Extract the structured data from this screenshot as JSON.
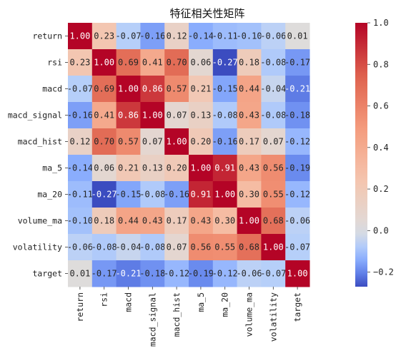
{
  "chart_data": {
    "type": "heatmap",
    "title": "特征相关性矩阵",
    "xlabel": "",
    "ylabel": "",
    "rows": [
      "return",
      "rsi",
      "macd",
      "macd_signal",
      "macd_hist",
      "ma_5",
      "ma_20",
      "volume_ma",
      "volatility",
      "target"
    ],
    "columns": [
      "return",
      "rsi",
      "macd",
      "macd_signal",
      "macd_hist",
      "ma_5",
      "ma_20",
      "volume_ma",
      "volatility",
      "target"
    ],
    "values": [
      [
        1.0,
        0.23,
        -0.07,
        -0.16,
        0.12,
        -0.14,
        -0.11,
        -0.1,
        -0.06,
        0.01
      ],
      [
        0.23,
        1.0,
        0.69,
        0.41,
        0.7,
        0.06,
        -0.27,
        0.18,
        -0.08,
        -0.17
      ],
      [
        -0.07,
        0.69,
        1.0,
        0.86,
        0.57,
        0.21,
        -0.15,
        0.44,
        -0.04,
        -0.21
      ],
      [
        -0.16,
        0.41,
        0.86,
        1.0,
        0.07,
        0.13,
        -0.08,
        0.43,
        -0.08,
        -0.18
      ],
      [
        0.12,
        0.7,
        0.57,
        0.07,
        1.0,
        0.2,
        -0.16,
        0.17,
        0.07,
        -0.12
      ],
      [
        -0.14,
        0.06,
        0.21,
        0.13,
        0.2,
        1.0,
        0.91,
        0.43,
        0.56,
        -0.19
      ],
      [
        -0.11,
        -0.27,
        -0.15,
        -0.08,
        -0.16,
        0.91,
        1.0,
        0.3,
        0.55,
        -0.12
      ],
      [
        -0.1,
        0.18,
        0.44,
        0.43,
        0.17,
        0.43,
        0.3,
        1.0,
        0.68,
        -0.06
      ],
      [
        -0.06,
        -0.08,
        -0.04,
        -0.08,
        0.07,
        0.56,
        0.55,
        0.68,
        1.0,
        -0.07
      ],
      [
        0.01,
        -0.17,
        -0.21,
        -0.18,
        -0.12,
        -0.19,
        -0.12,
        -0.06,
        -0.07,
        1.0
      ]
    ],
    "value_range": [
      -0.27,
      1.0
    ],
    "annotation_format": "0.00",
    "colormap": "coolwarm",
    "colorbar": {
      "ticks": [
        -0.2,
        0.0,
        0.2,
        0.4,
        0.6,
        0.8,
        1.0
      ],
      "tick_labels": [
        "−0.2",
        "0.0",
        "0.2",
        "0.4",
        "0.6",
        "0.8",
        "1.0"
      ],
      "placement": "right"
    },
    "grid": false
  }
}
